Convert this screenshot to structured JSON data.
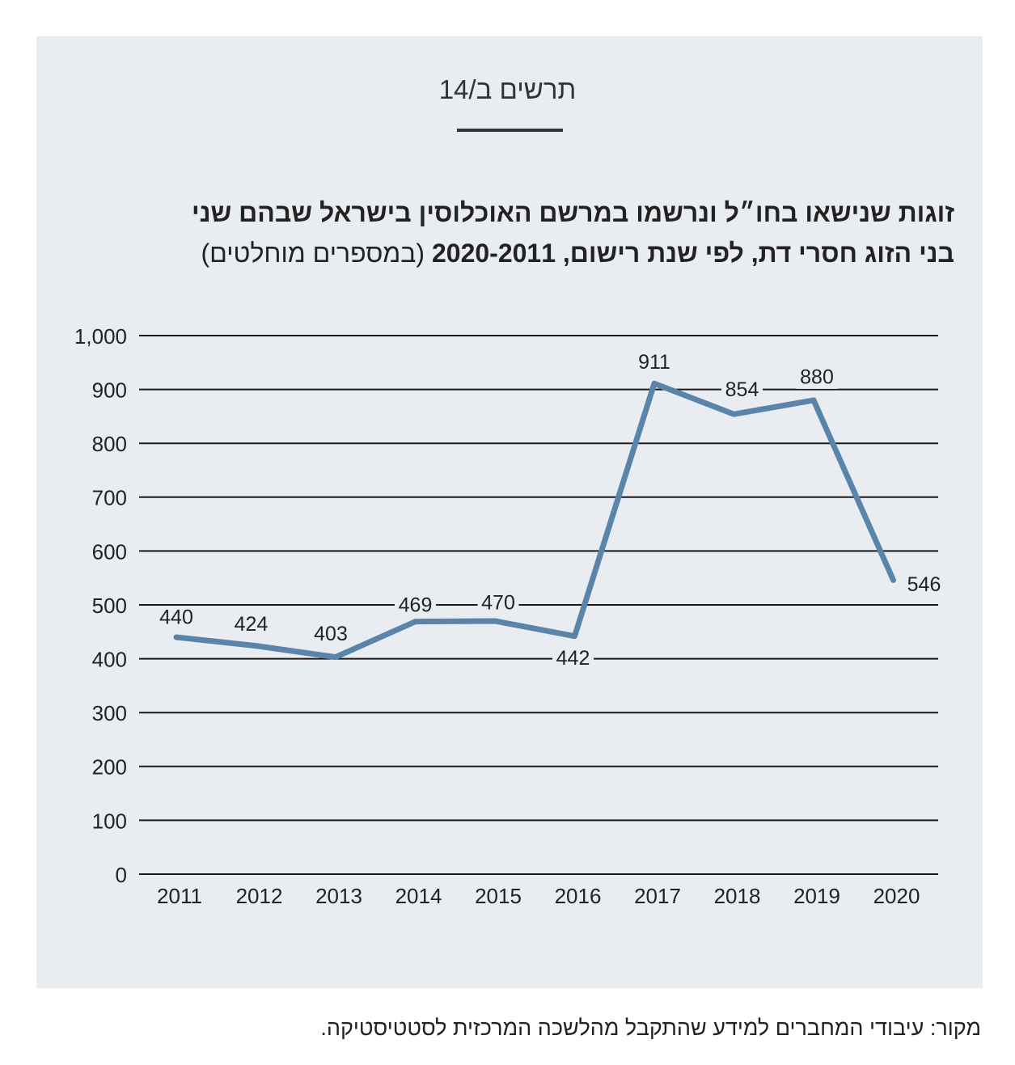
{
  "header": {
    "figure_label": "תרשים ב/14",
    "title_line1": "זוגות שנישאו בחו״ל ונרשמו במרשם האוכלוסין בישראל שבהם שני",
    "title_line2": "בני הזוג חסרי דת, לפי שנת רישום, 2020-2011",
    "title_unit": "(במספרים מוחלטים)"
  },
  "chart_data": {
    "type": "line",
    "x": [
      "2011",
      "2012",
      "2013",
      "2014",
      "2015",
      "2016",
      "2017",
      "2018",
      "2019",
      "2020"
    ],
    "values": [
      440,
      424,
      403,
      469,
      470,
      442,
      911,
      854,
      880,
      546
    ],
    "data_labels": [
      "440",
      "424",
      "403",
      "469",
      "470",
      "442",
      "911",
      "854",
      "880",
      "546"
    ],
    "y_ticks": [
      "0",
      "100",
      "200",
      "300",
      "400",
      "500",
      "600",
      "700",
      "800",
      "900",
      "1,000"
    ],
    "ylim": [
      0,
      1000
    ],
    "grid": true,
    "line_color": "#5b84aa",
    "grid_color": "#1a1a1a"
  },
  "footer": {
    "source": "מקור: עיבודי המחברים למידע שהתקבל מהלשכה המרכזית לסטטיסטיקה."
  }
}
